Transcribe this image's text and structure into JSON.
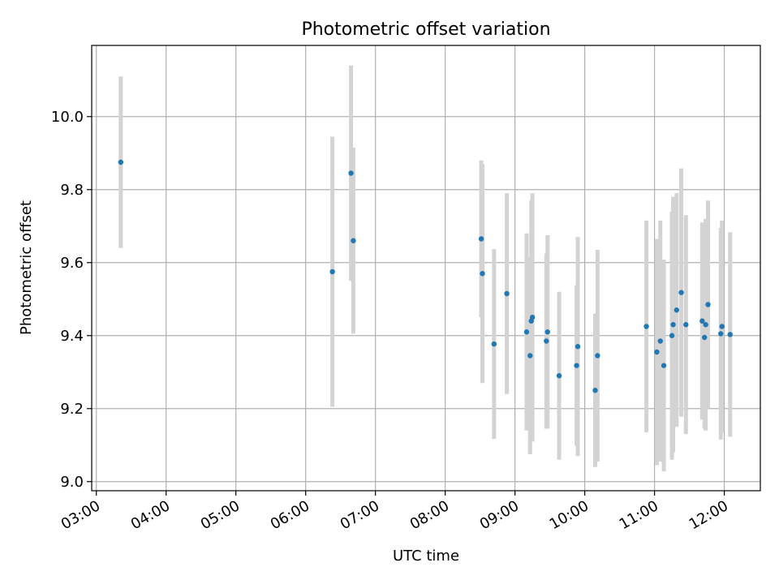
{
  "chart_data": {
    "type": "scatter",
    "title": "Photometric offset variation",
    "xlabel": "UTC time",
    "ylabel": "Photometric offset",
    "xlim": [
      "02:56",
      "12:31"
    ],
    "ylim": [
      8.975,
      10.195
    ],
    "grid": true,
    "x_ticks": [
      "03:00",
      "04:00",
      "05:00",
      "06:00",
      "07:00",
      "08:00",
      "09:00",
      "10:00",
      "11:00",
      "12:00"
    ],
    "y_ticks": [
      "9.0",
      "9.2",
      "9.4",
      "9.6",
      "9.8",
      "10.0"
    ],
    "colors": {
      "points": "#1f77b4",
      "errorbars": "#d3d3d3",
      "grid": "#b0b0b0"
    },
    "series": [
      {
        "values": [
          {
            "x": "03:21",
            "y": 9.875,
            "err": 0.235
          },
          {
            "x": "06:23",
            "y": 9.575,
            "err": 0.37
          },
          {
            "x": "06:39",
            "y": 9.845,
            "err": 0.295
          },
          {
            "x": "06:41",
            "y": 9.66,
            "err": 0.255
          },
          {
            "x": "08:31",
            "y": 9.665,
            "err": 0.215
          },
          {
            "x": "08:32",
            "y": 9.57,
            "err": 0.3
          },
          {
            "x": "08:42",
            "y": 9.377,
            "err": 0.26
          },
          {
            "x": "08:53",
            "y": 9.515,
            "err": 0.275
          },
          {
            "x": "09:10",
            "y": 9.41,
            "err": 0.27
          },
          {
            "x": "09:13",
            "y": 9.345,
            "err": 0.27
          },
          {
            "x": "09:14",
            "y": 9.44,
            "err": 0.33
          },
          {
            "x": "09:15",
            "y": 9.45,
            "err": 0.34
          },
          {
            "x": "09:27",
            "y": 9.385,
            "err": 0.24
          },
          {
            "x": "09:28",
            "y": 9.41,
            "err": 0.265
          },
          {
            "x": "09:38",
            "y": 9.29,
            "err": 0.23
          },
          {
            "x": "09:53",
            "y": 9.318,
            "err": 0.22
          },
          {
            "x": "09:54",
            "y": 9.37,
            "err": 0.3
          },
          {
            "x": "10:09",
            "y": 9.25,
            "err": 0.21
          },
          {
            "x": "10:11",
            "y": 9.345,
            "err": 0.29
          },
          {
            "x": "10:53",
            "y": 9.425,
            "err": 0.29
          },
          {
            "x": "11:02",
            "y": 9.355,
            "err": 0.31
          },
          {
            "x": "11:05",
            "y": 9.385,
            "err": 0.33
          },
          {
            "x": "11:08",
            "y": 9.318,
            "err": 0.29
          },
          {
            "x": "11:15",
            "y": 9.4,
            "err": 0.34
          },
          {
            "x": "11:16",
            "y": 9.43,
            "err": 0.35
          },
          {
            "x": "11:19",
            "y": 9.47,
            "err": 0.32
          },
          {
            "x": "11:23",
            "y": 9.518,
            "err": 0.34
          },
          {
            "x": "11:27",
            "y": 9.43,
            "err": 0.3
          },
          {
            "x": "11:41",
            "y": 9.44,
            "err": 0.27
          },
          {
            "x": "11:43",
            "y": 9.395,
            "err": 0.25
          },
          {
            "x": "11:44",
            "y": 9.43,
            "err": 0.29
          },
          {
            "x": "11:46",
            "y": 9.485,
            "err": 0.285
          },
          {
            "x": "11:57",
            "y": 9.405,
            "err": 0.29
          },
          {
            "x": "11:58",
            "y": 9.425,
            "err": 0.29
          },
          {
            "x": "12:05",
            "y": 9.403,
            "err": 0.28
          }
        ]
      }
    ]
  }
}
